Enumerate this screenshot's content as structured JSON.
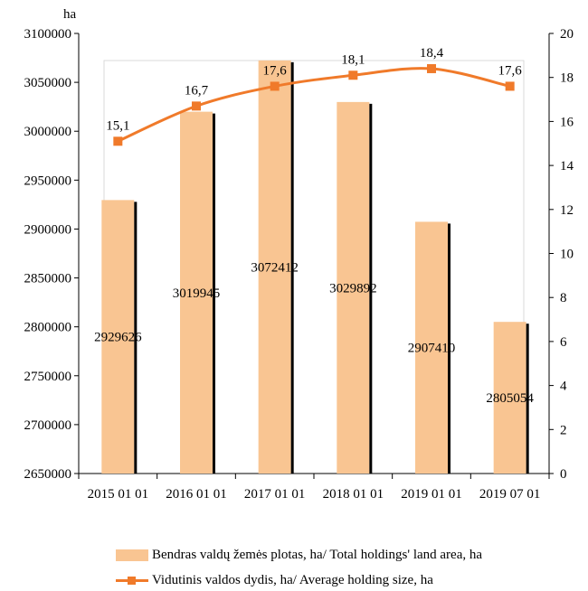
{
  "chart_data": {
    "type": "bar",
    "categories": [
      "2015 01 01",
      "2016 01 01",
      "2017 01 01",
      "2018 01 01",
      "2019 01 01",
      "2019 07 01"
    ],
    "series": [
      {
        "name": "Bendras valdų žemės plotas, ha/ Total holdings' land area, ha",
        "type": "bar",
        "axis": "left",
        "color": "#f9c592",
        "values": [
          2929626,
          3019945,
          3072412,
          3029892,
          2907410,
          2805054
        ],
        "labels": [
          "2929626",
          "3019945",
          "3072412",
          "3029892",
          "2907410",
          "2805054"
        ]
      },
      {
        "name": "Vidutinis valdos dydis, ha/ Average holding size, ha",
        "type": "line",
        "axis": "right",
        "color": "#f07a2a",
        "values": [
          15.1,
          16.7,
          17.6,
          18.1,
          18.4,
          17.6
        ],
        "labels": [
          "15,1",
          "16,7",
          "17,6",
          "18,1",
          "18,4",
          "17,6"
        ]
      }
    ],
    "y_left": {
      "unit_label": "ha",
      "ylim": [
        2650000,
        3100000
      ],
      "ticks": [
        "2650000",
        "2700000",
        "2750000",
        "2800000",
        "2850000",
        "2900000",
        "2950000",
        "3000000",
        "3050000",
        "3100000"
      ]
    },
    "y_right": {
      "ylim": [
        0,
        20
      ],
      "ticks": [
        "0",
        "2",
        "4",
        "6",
        "8",
        "10",
        "12",
        "14",
        "16",
        "18",
        "20"
      ]
    },
    "legend_position": "bottom",
    "grid": false
  }
}
